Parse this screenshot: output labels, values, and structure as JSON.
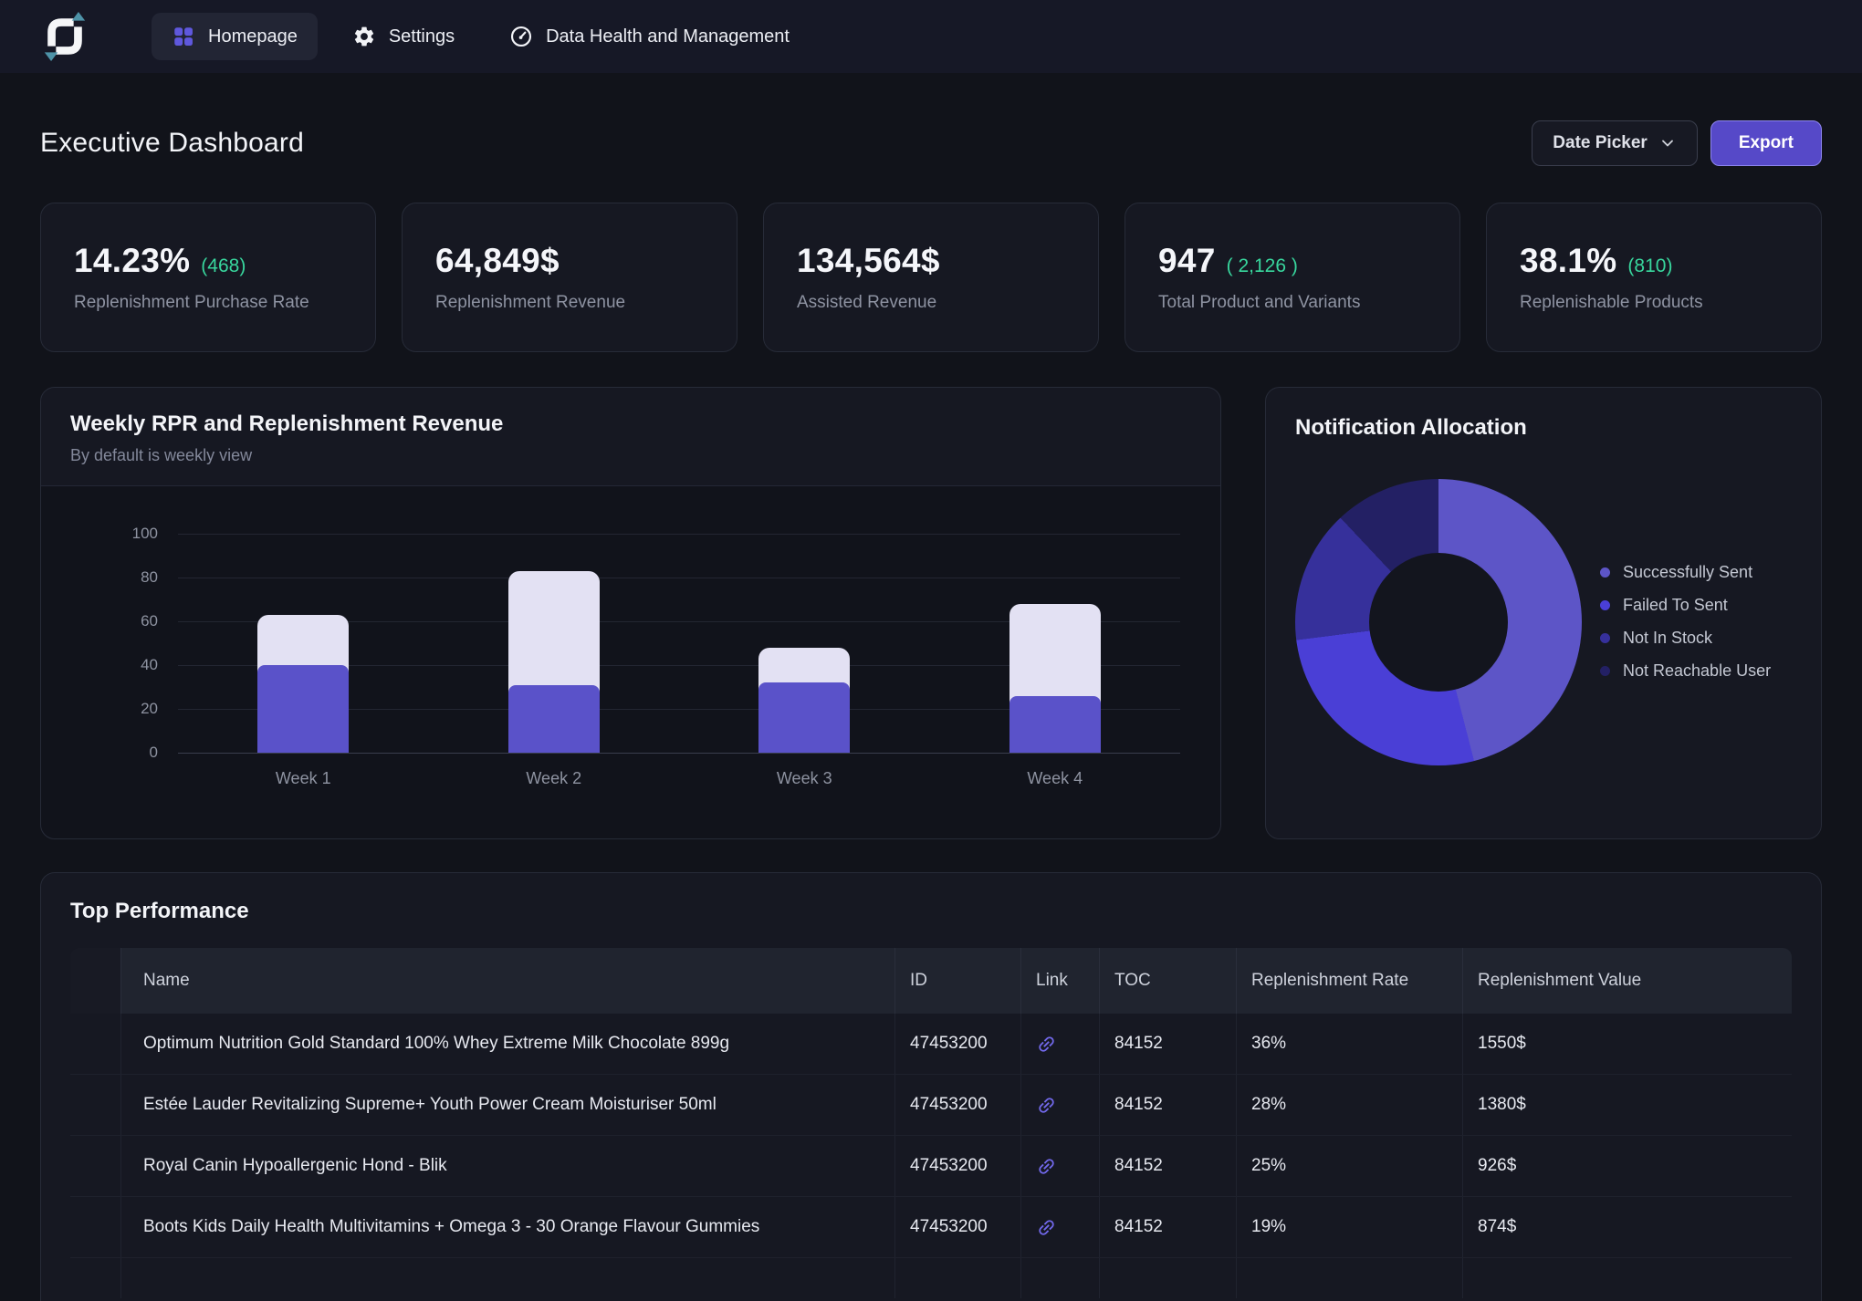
{
  "nav": {
    "items": [
      {
        "label": "Homepage",
        "active": true
      },
      {
        "label": "Settings",
        "active": false
      },
      {
        "label": "Data Health and Management",
        "active": false
      }
    ]
  },
  "header": {
    "title": "Executive Dashboard",
    "date_picker": "Date Picker",
    "export": "Export"
  },
  "kpis": [
    {
      "value": "14.23%",
      "sub": "(468)",
      "label": "Replenishment Purchase Rate"
    },
    {
      "value": "64,849$",
      "sub": "",
      "label": "Replenishment Revenue"
    },
    {
      "value": "134,564$",
      "sub": "",
      "label": "Assisted Revenue"
    },
    {
      "value": "947",
      "sub": "( 2,126 )",
      "label": "Total Product and Variants"
    },
    {
      "value": "38.1%",
      "sub": "(810)",
      "label": "Replenishable Products"
    }
  ],
  "chart_data": [
    {
      "type": "bar",
      "stacked": true,
      "title": "Weekly RPR and Replenishment Revenue",
      "subtitle": "By default is weekly view",
      "categories": [
        "Week 1",
        "Week 2",
        "Week 3",
        "Week 4"
      ],
      "series": [
        {
          "name": "bottom-segment (purple)",
          "color": "#5a52c9",
          "values": [
            40,
            31,
            32,
            26
          ]
        },
        {
          "name": "top-segment (light)",
          "color": "#e3e1f3",
          "values": [
            23,
            52,
            16,
            42
          ]
        }
      ],
      "totals": [
        63,
        83,
        48,
        68
      ],
      "ylim": [
        0,
        100
      ],
      "yticks": [
        0,
        20,
        40,
        60,
        80,
        100
      ],
      "grid": true,
      "legend": false
    },
    {
      "type": "pie",
      "subtype": "donut",
      "title": "Notification Allocation",
      "labels": [
        "Successfully Sent",
        "Failed To Sent",
        "Not In Stock",
        "Not Reachable User"
      ],
      "values_percent": [
        46,
        27,
        15,
        12
      ],
      "colors": [
        "#5d55c7",
        "#4a3fd6",
        "#36309b",
        "#232064"
      ],
      "legend_position": "right"
    }
  ],
  "table": {
    "title": "Top Performance",
    "columns": [
      "",
      "Name",
      "ID",
      "Link",
      "TOC",
      "Replenishment Rate",
      "Replenishment Value"
    ],
    "rows": [
      {
        "name": "Optimum Nutrition Gold Standard 100% Whey Extreme Milk Chocolate 899g",
        "id": "47453200",
        "toc": "84152",
        "rate": "36%",
        "value": "1550$"
      },
      {
        "name": "Estée Lauder Revitalizing Supreme+ Youth Power Cream Moisturiser 50ml",
        "id": "47453200",
        "toc": "84152",
        "rate": "28%",
        "value": "1380$"
      },
      {
        "name": "Royal Canin Hypoallergenic Hond - Blik",
        "id": "47453200",
        "toc": "84152",
        "rate": "25%",
        "value": "926$"
      },
      {
        "name": "Boots Kids Daily Health Multivitamins + Omega 3 - 30 Orange Flavour Gummies",
        "id": "47453200",
        "toc": "84152",
        "rate": "19%",
        "value": "874$"
      }
    ]
  },
  "colors": {
    "accent": "#5649c8",
    "positive": "#38d69d",
    "bar_primary": "#5a52c9",
    "bar_secondary": "#e3e1f3",
    "logo_arrow": "#4e93a8"
  },
  "icons": {
    "nav": [
      "grid-icon",
      "gear-icon",
      "gauge-icon"
    ],
    "table_link": "chain-link-icon",
    "date_picker": "chevron-down-icon"
  }
}
